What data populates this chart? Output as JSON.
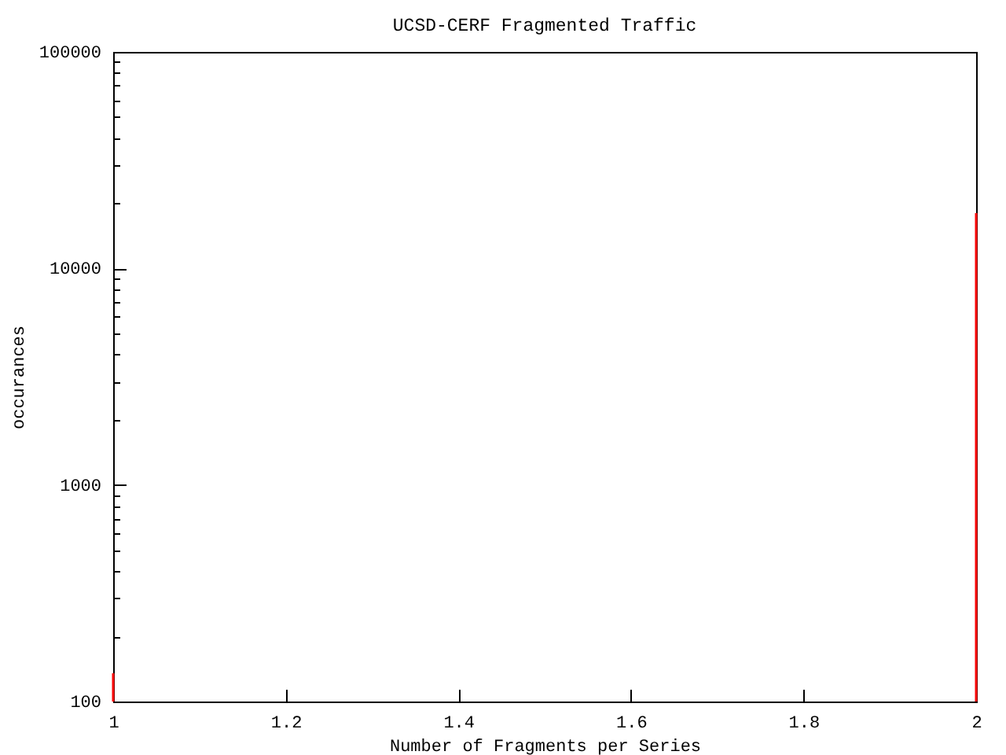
{
  "chart_data": {
    "type": "bar",
    "title": "UCSD-CERF Fragmented Traffic",
    "xlabel": "Number of Fragments per Series",
    "ylabel": "occurances",
    "x": [
      1,
      2
    ],
    "values": [
      135,
      18000
    ],
    "color": "#ff0000",
    "log": "y",
    "xlim": [
      1,
      2
    ],
    "xticks": [
      1,
      1.2,
      1.4,
      1.6,
      1.8,
      2
    ],
    "ylim": [
      100,
      100000
    ],
    "yticks": [
      100,
      {
        "value": 200,
        "label": null
      },
      {
        "value": 300,
        "label": null
      },
      {
        "value": 400,
        "label": null
      },
      {
        "value": 500,
        "label": null
      },
      {
        "value": 600,
        "label": null
      },
      {
        "value": 700,
        "label": null
      },
      {
        "value": 800,
        "label": null
      },
      {
        "value": 900,
        "label": null
      },
      1000,
      {
        "value": 2000,
        "label": null
      },
      {
        "value": 3000,
        "label": null
      },
      {
        "value": 4000,
        "label": null
      },
      {
        "value": 5000,
        "label": null
      },
      {
        "value": 6000,
        "label": null
      },
      {
        "value": 7000,
        "label": null
      },
      {
        "value": 8000,
        "label": null
      },
      {
        "value": 9000,
        "label": null
      },
      10000,
      {
        "value": 20000,
        "label": null
      },
      {
        "value": 30000,
        "label": null
      },
      {
        "value": 40000,
        "label": null
      },
      {
        "value": 50000,
        "label": null
      },
      {
        "value": 60000,
        "label": null
      },
      {
        "value": 70000,
        "label": null
      },
      {
        "value": 80000,
        "label": null
      },
      {
        "value": 90000,
        "label": null
      },
      100000
    ]
  }
}
